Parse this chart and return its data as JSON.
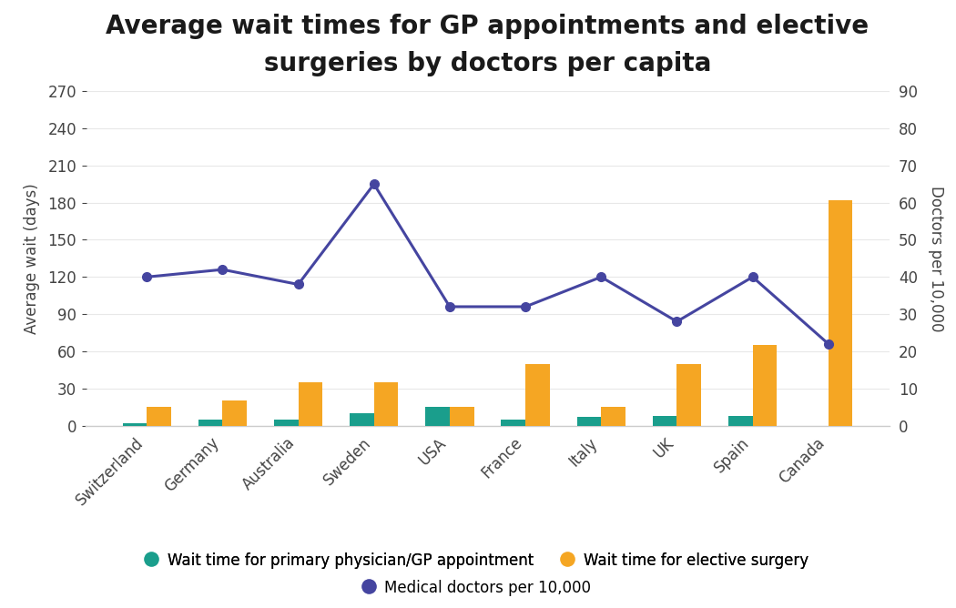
{
  "countries": [
    "Switzerland",
    "Germany",
    "Australia",
    "Sweden",
    "USA",
    "France",
    "Italy",
    "UK",
    "Spain",
    "Canada"
  ],
  "gp_wait": [
    2,
    5,
    5,
    10,
    15,
    5,
    7,
    8,
    8,
    0
  ],
  "surgery_wait": [
    15,
    20,
    35,
    35,
    15,
    50,
    15,
    50,
    65,
    182
  ],
  "doctors_per_10k": [
    40,
    42,
    38,
    65,
    32,
    32,
    40,
    28,
    40,
    22
  ],
  "bar_width": 0.32,
  "gp_color": "#1a9e8c",
  "surgery_color": "#f5a623",
  "line_color": "#4545a0",
  "title_line1": "Average wait times for GP appointments and elective",
  "title_line2": "surgeries by doctors per capita",
  "ylabel_left": "Average wait (days)",
  "ylabel_right": "Doctors per 10,000",
  "ylim_left": [
    0,
    270
  ],
  "ylim_right": [
    0,
    90
  ],
  "yticks_left": [
    0,
    30,
    60,
    90,
    120,
    150,
    180,
    210,
    240,
    270
  ],
  "yticks_right": [
    0,
    10,
    20,
    30,
    40,
    50,
    60,
    70,
    80,
    90
  ],
  "legend_gp": "Wait time for primary physician/GP appointment",
  "legend_surgery": "Wait time for elective surgery",
  "legend_doctors": "Medical doctors per 10,000",
  "bg_color": "#ffffff",
  "title_fontsize": 20,
  "label_fontsize": 12,
  "tick_fontsize": 12,
  "legend_fontsize": 12,
  "text_color": "#444444",
  "grid_color": "#e8e8e8",
  "spine_color": "#cccccc"
}
